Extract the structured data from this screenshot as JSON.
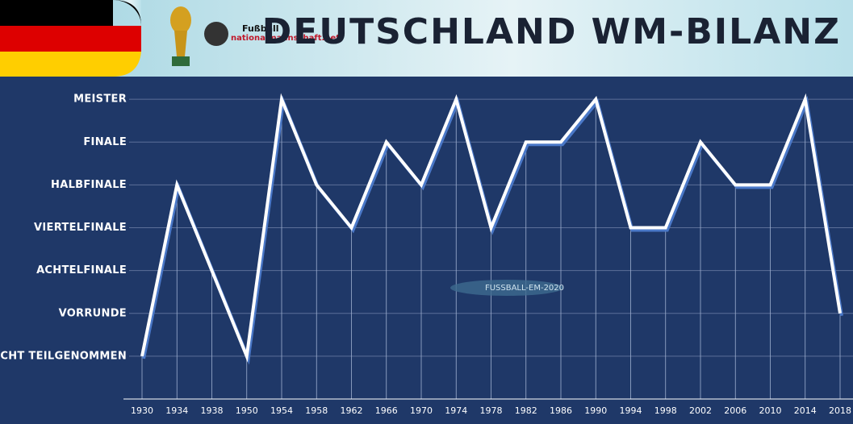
{
  "header": {
    "logo_line1": "Fußball",
    "logo_line2": "nationalmannschaft.net"
  },
  "watermark": "FUSSBALL-EM-2020",
  "chart_data": {
    "type": "line",
    "title": "DEUTSCHLAND WM-BILANZ",
    "categories": [
      "1930",
      "1934",
      "1938",
      "1950",
      "1954",
      "1958",
      "1962",
      "1966",
      "1970",
      "1974",
      "1978",
      "1982",
      "1986",
      "1990",
      "1994",
      "1998",
      "2002",
      "2006",
      "2010",
      "2014",
      "2018"
    ],
    "series": [
      {
        "name": "Deutschland",
        "color": "#ffffff",
        "values": [
          0,
          4,
          2,
          0,
          6,
          4,
          3,
          5,
          4,
          6,
          3,
          5,
          5,
          6,
          3,
          3,
          5,
          4,
          4,
          6,
          1
        ]
      }
    ],
    "ylim": [
      -1,
      6.53
    ],
    "yticks": [
      {
        "value": 0,
        "label": "Nicht teilgenommen"
      },
      {
        "value": 1,
        "label": "Vorrunde"
      },
      {
        "value": 2,
        "label": "Achtelfinale"
      },
      {
        "value": 3,
        "label": "Viertelfinale"
      },
      {
        "value": 4,
        "label": "Halbfinale"
      },
      {
        "value": 5,
        "label": "Finale"
      },
      {
        "value": 6,
        "label": "Meister"
      }
    ],
    "grid": true
  }
}
